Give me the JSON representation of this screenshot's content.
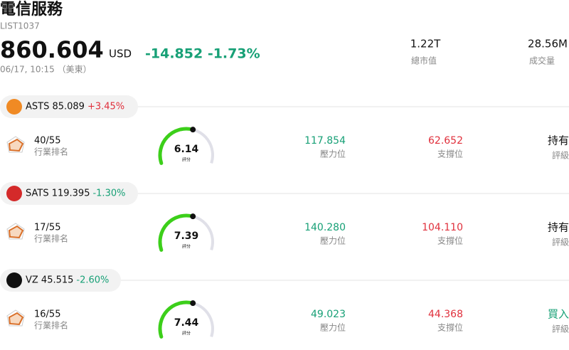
{
  "header": {
    "title": "電信服務",
    "code": "LIST1037",
    "price": "860.604",
    "currency": "USD",
    "change": "-14.852 -1.73%",
    "change_color": "#17a076",
    "time": "06/17, 10:15 （美東）",
    "stats": [
      {
        "value": "1.22T",
        "label": "總市值"
      },
      {
        "value": "28.56M",
        "label": "成交量"
      }
    ]
  },
  "stocks": [
    {
      "name": "ASTS 85.089",
      "change": "+3.45%",
      "change_color": "#e0303c",
      "icon_color": "#f08a24",
      "rank": "40/55",
      "rank_label": "行業排名",
      "score": "6.14",
      "score_label": "評分",
      "resistance": "117.854",
      "resistance_label": "壓力位",
      "support": "62.652",
      "support_label": "支撐位",
      "rating": "持有",
      "rating_color": "#111111",
      "rating_label": "評級"
    },
    {
      "name": "SATS 119.395",
      "change": "-1.30%",
      "change_color": "#17a076",
      "icon_color": "#d42a2a",
      "rank": "17/55",
      "rank_label": "行業排名",
      "score": "7.39",
      "score_label": "評分",
      "resistance": "140.280",
      "resistance_label": "壓力位",
      "support": "104.110",
      "support_label": "支撐位",
      "rating": "持有",
      "rating_color": "#111111",
      "rating_label": "評級"
    },
    {
      "name": "VZ 45.515",
      "change": "-2.60%",
      "change_color": "#17a076",
      "icon_color": "#111111",
      "rank": "16/55",
      "rank_label": "行業排名",
      "score": "7.44",
      "score_label": "評分",
      "resistance": "49.023",
      "resistance_label": "壓力位",
      "support": "44.368",
      "support_label": "支撐位",
      "rating": "買入",
      "rating_color": "#17a076",
      "rating_label": "評級"
    }
  ]
}
